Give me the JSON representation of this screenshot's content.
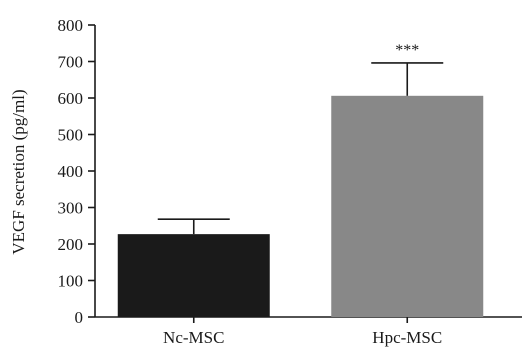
{
  "chart_data": {
    "type": "bar",
    "title": "",
    "xlabel": "",
    "ylabel": "VEGF secretion (pg/ml)",
    "categories": [
      "Nc-MSC",
      "Hpc-MSC"
    ],
    "values": [
      227,
      606
    ],
    "error": [
      41,
      90
    ],
    "bar_colors": [
      "#1a1a1a",
      "#888888"
    ],
    "ylim": [
      0,
      800
    ],
    "yticks": [
      0,
      100,
      200,
      300,
      400,
      500,
      600,
      700,
      800
    ],
    "annotations": [
      {
        "category": "Hpc-MSC",
        "text": "***"
      }
    ],
    "grid": false,
    "legend": "none"
  }
}
